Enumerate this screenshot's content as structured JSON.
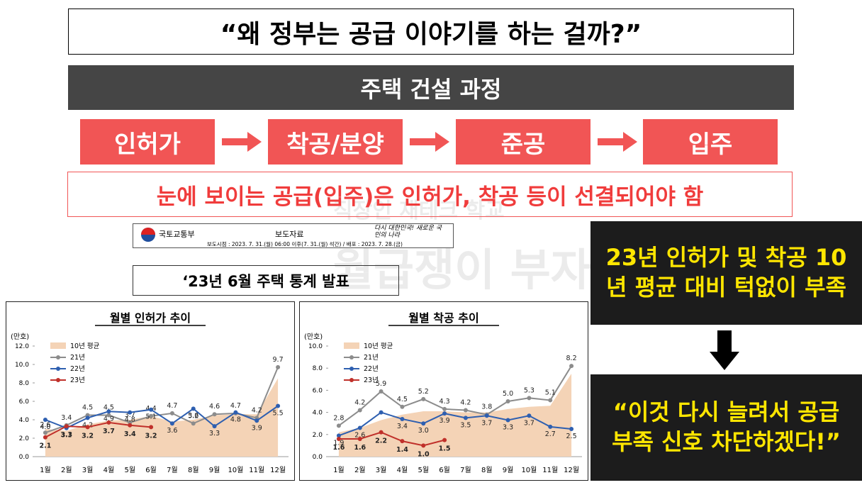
{
  "title": "“왜 정부는 공급 이야기를 하는 걸까?”",
  "process": {
    "header": "주택 건설 과정",
    "steps": [
      "인허가",
      "착공/분양",
      "준공",
      "입주"
    ]
  },
  "note": "눈에 보이는 공급(입주)은 인허가, 착공 등이 선결되어야 함",
  "watermark": {
    "line1": "직장인 재테크 학교",
    "line2": "월급쟁이 부자들"
  },
  "document": {
    "ministry": "국토교통부",
    "kind": "보도자료",
    "slogan": "다시 대한민국! 새로운 국민의 나라",
    "dates": "보도시점 : 2023. 7. 31.(월) 06:00 이후(7. 31.(월) 석간) / 배포 : 2023. 7. 28.(금)",
    "title": "‘23년 6월 주택 통계 발표"
  },
  "callout": {
    "top": "23년 인허가 및 착공 10년 평균 대비 턱없이 부족",
    "bottom": "“이것 다시 늘려서 공급부족 신호 차단하겠다!”"
  },
  "chart_data": [
    {
      "type": "line",
      "title": "월별 인허가 추이",
      "y_label": "(만호)",
      "categories": [
        "1월",
        "2월",
        "3월",
        "4월",
        "5월",
        "6월",
        "7월",
        "8월",
        "9월",
        "10월",
        "11월",
        "12월"
      ],
      "ylim": [
        0,
        12
      ],
      "yticks": [
        {
          "value": 0,
          "label": "0.0"
        },
        {
          "value": 2,
          "label": "2.0"
        },
        {
          "value": 4,
          "label": "4.0"
        },
        {
          "value": 6,
          "label": "6.0"
        },
        {
          "value": 8,
          "label": "8.0"
        },
        {
          "value": 10,
          "label": "10.0"
        },
        {
          "value": 12,
          "label": "12.0"
        }
      ],
      "series": [
        {
          "name": "10년 평균",
          "kind": "area",
          "color": "#f4d3b6",
          "values": [
            3.0,
            2.8,
            3.5,
            3.9,
            4.0,
            4.4,
            3.8,
            4.0,
            4.5,
            4.6,
            4.6,
            8.5
          ]
        },
        {
          "name": "21년",
          "color": "#8c8c8c",
          "values": [
            2.6,
            3.4,
            4.5,
            4.5,
            3.7,
            4.4,
            4.7,
            3.6,
            4.6,
            4.7,
            4.2,
            9.7
          ],
          "value_labels": [
            "2.6",
            "3.4",
            "4.5",
            "4.5",
            "3.7",
            "4.4",
            "4.7",
            "3.6",
            "4.6",
            "4.7",
            "4.2",
            "9.7"
          ]
        },
        {
          "name": "22년",
          "color": "#2e5fb0",
          "values": [
            4.0,
            3.1,
            4.2,
            4.9,
            4.8,
            5.1,
            3.6,
            5.2,
            3.3,
            4.8,
            3.9,
            5.5
          ],
          "value_labels": [
            "4.0",
            "3.1",
            "4.2",
            "4.9",
            "4.8",
            "5.1",
            "3.6",
            "5.2",
            "3.3",
            "4.8",
            "3.9",
            "5.5"
          ]
        },
        {
          "name": "23년",
          "color": "#c0302a",
          "values": [
            2.1,
            3.3,
            3.2,
            3.7,
            3.4,
            3.2,
            null,
            null,
            null,
            null,
            null,
            null
          ],
          "value_labels": [
            "2.1",
            "3.3",
            "3.2",
            "3.7",
            "3.4",
            "3.2",
            null,
            null,
            null,
            null,
            null,
            null
          ]
        }
      ]
    },
    {
      "type": "line",
      "title": "월별 착공 추이",
      "y_label": "(만호)",
      "categories": [
        "1월",
        "2월",
        "3월",
        "4월",
        "5월",
        "6월",
        "7월",
        "8월",
        "9월",
        "10월",
        "11월",
        "12월"
      ],
      "ylim": [
        0,
        10
      ],
      "yticks": [
        {
          "value": 0,
          "label": "0.0"
        },
        {
          "value": 2,
          "label": "2.0"
        },
        {
          "value": 4,
          "label": "4.0"
        },
        {
          "value": 6,
          "label": "6.0"
        },
        {
          "value": 8,
          "label": "8.0"
        },
        {
          "value": 10,
          "label": "10.0"
        }
      ],
      "series": [
        {
          "name": "10년 평균",
          "kind": "area",
          "color": "#f4d3b6",
          "values": [
            2.2,
            2.6,
            3.3,
            3.8,
            4.1,
            4.1,
            4.0,
            4.0,
            4.3,
            4.5,
            4.6,
            7.5
          ]
        },
        {
          "name": "21년",
          "color": "#8c8c8c",
          "values": [
            2.8,
            4.2,
            5.9,
            4.5,
            5.2,
            4.3,
            4.2,
            3.8,
            5.0,
            5.3,
            5.1,
            8.2
          ],
          "value_labels": [
            "2.8",
            "4.2",
            "5.9",
            "4.5",
            "5.2",
            "4.3",
            "4.2",
            "3.8",
            "5.0",
            "5.3",
            "5.1",
            "8.2"
          ]
        },
        {
          "name": "22년",
          "color": "#2e5fb0",
          "values": [
            1.9,
            2.6,
            4.0,
            3.4,
            3.0,
            3.9,
            3.5,
            3.7,
            3.3,
            3.7,
            2.7,
            2.5
          ],
          "value_labels": [
            "1.9",
            "2.6",
            null,
            "3.4",
            "3.0",
            "3.9",
            "3.5",
            "3.7",
            "3.3",
            "3.7",
            "2.7",
            "2.5"
          ]
        },
        {
          "name": "23년",
          "color": "#c0302a",
          "values": [
            1.6,
            1.6,
            2.2,
            1.4,
            1.0,
            1.5,
            null,
            null,
            null,
            null,
            null,
            null
          ],
          "value_labels": [
            "1.6",
            "1.6",
            "2.2",
            "1.4",
            "1.0",
            "1.5",
            null,
            null,
            null,
            null,
            null,
            null
          ]
        }
      ]
    }
  ]
}
